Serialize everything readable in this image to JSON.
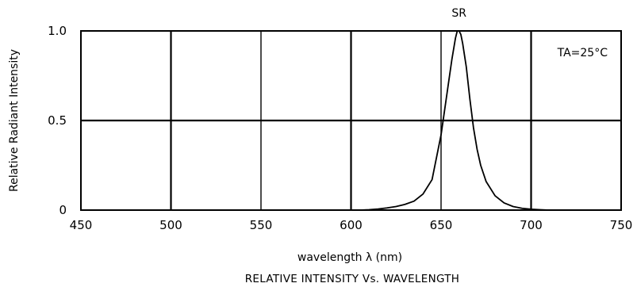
{
  "chart_data": {
    "type": "line",
    "title": "",
    "caption": "RELATIVE INTENSITY Vs. WAVELENGTH",
    "xlabel": "wavelength λ (nm)",
    "ylabel": "Relative Radiant Intensity",
    "xlim": [
      450,
      750
    ],
    "ylim": [
      0,
      1.0
    ],
    "xticks": [
      450,
      500,
      550,
      600,
      650,
      700,
      750
    ],
    "xtick_labels": [
      "450",
      "500",
      "550",
      "600",
      "650",
      "700",
      "750"
    ],
    "yticks": [
      0,
      0.5,
      1.0
    ],
    "ytick_labels": [
      "0",
      "0.5",
      "1.0"
    ],
    "grid": true,
    "legend": "none",
    "annotations": [
      {
        "text": "SR",
        "x": 660,
        "y": 1.0,
        "position": "above-peak"
      },
      {
        "text": "TA=25°C",
        "position": "top-right"
      }
    ],
    "series": [
      {
        "x": [
          600,
          605,
          610,
          615,
          620,
          625,
          630,
          635,
          640,
          645,
          650,
          652,
          654,
          656,
          658,
          659,
          660,
          661,
          662,
          664,
          666,
          668,
          670,
          672,
          675,
          680,
          685,
          690,
          695,
          700,
          705,
          710
        ],
        "values": [
          0.0,
          0.0,
          0.002,
          0.006,
          0.012,
          0.02,
          0.032,
          0.05,
          0.09,
          0.17,
          0.42,
          0.56,
          0.7,
          0.84,
          0.96,
          1.0,
          1.0,
          0.98,
          0.93,
          0.8,
          0.62,
          0.46,
          0.34,
          0.25,
          0.16,
          0.08,
          0.04,
          0.02,
          0.01,
          0.005,
          0.002,
          0.0
        ]
      }
    ]
  }
}
